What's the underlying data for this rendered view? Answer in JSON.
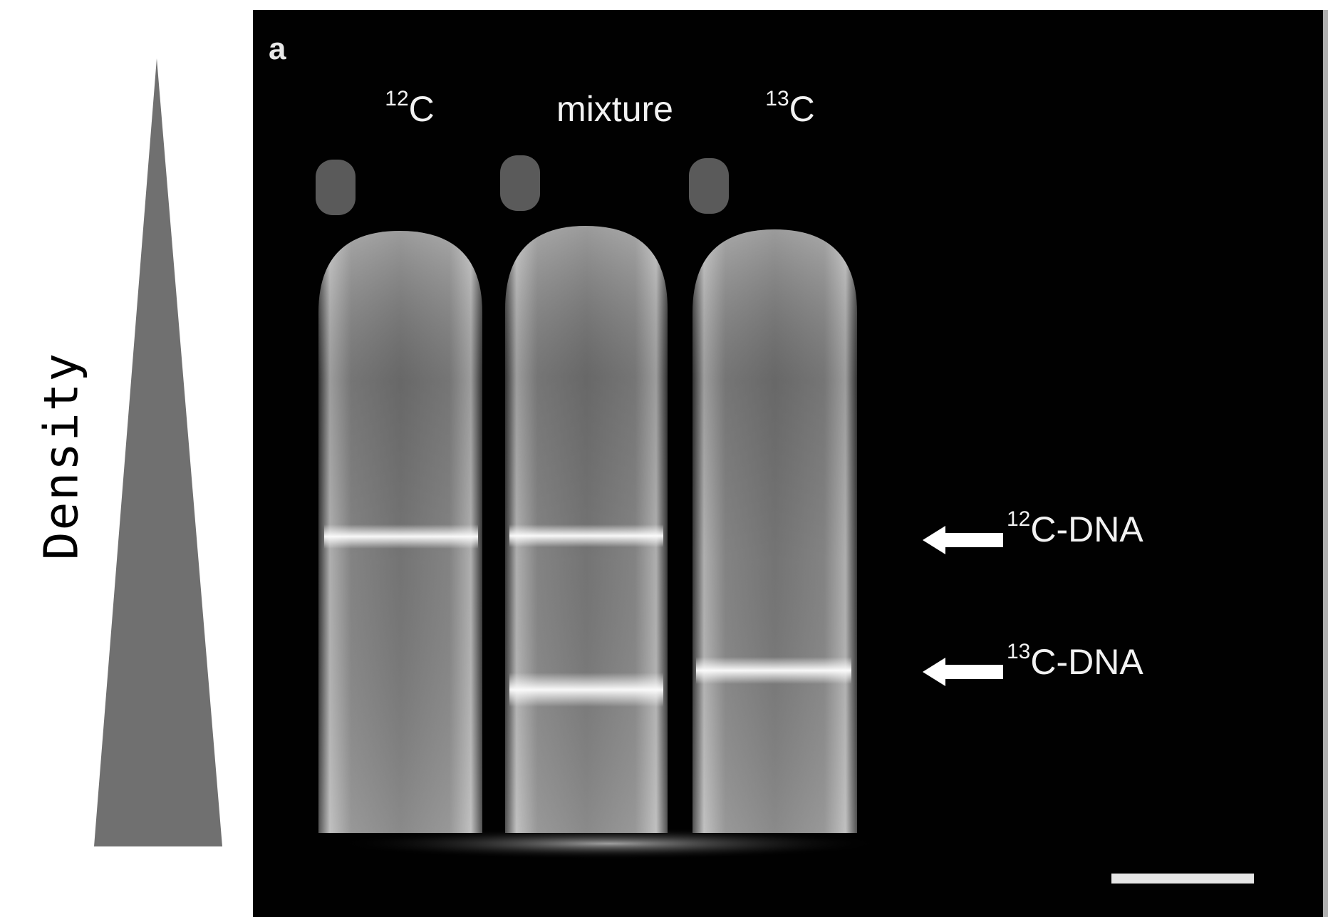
{
  "axis": {
    "label": "Density"
  },
  "panel": {
    "letter": "a"
  },
  "tubes": [
    {
      "isotope_sup": "12",
      "isotope_base": "C"
    },
    {
      "name": "mixture"
    },
    {
      "isotope_sup": "13",
      "isotope_base": "C"
    }
  ],
  "bands": [
    {
      "sup": "12",
      "text": "C-DNA"
    },
    {
      "sup": "13",
      "text": "C-DNA"
    }
  ],
  "colors": {
    "wedge": "#707070",
    "background": "#010101",
    "label": "#f2f2f2"
  }
}
